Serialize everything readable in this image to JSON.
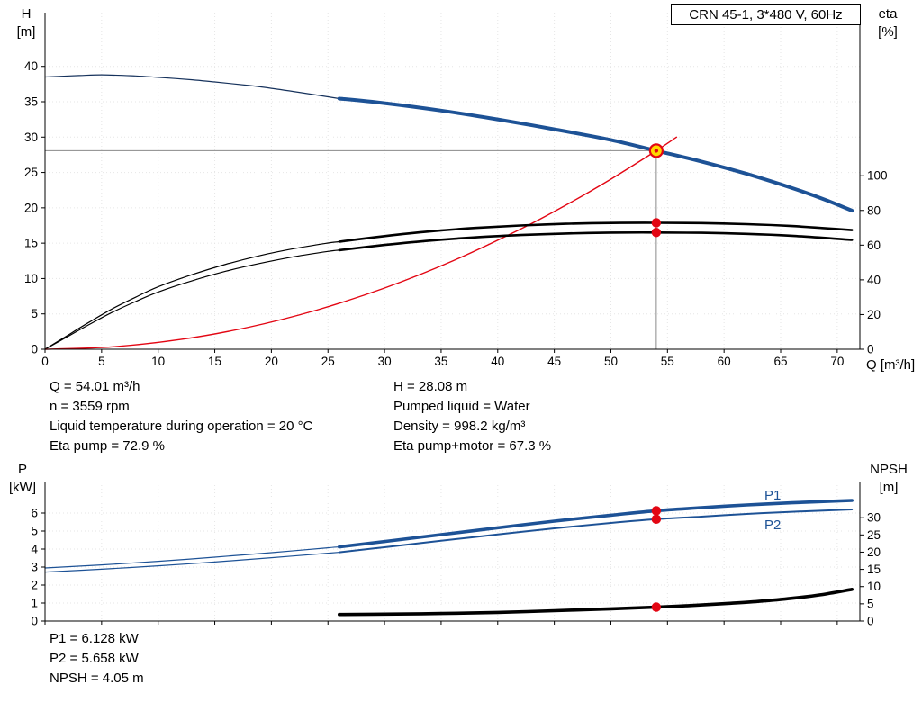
{
  "info": {
    "flow": "Q = 54.01 m³/h",
    "speed": "n = 3559 rpm",
    "temp": "Liquid temperature during operation = 20 °C",
    "eta_pump": "Eta pump = 72.9 %",
    "head": "H = 28.08 m",
    "liquid": "Pumped liquid = Water",
    "density": "Density = 998.2 kg/m³",
    "eta_total": "Eta pump+motor = 67.3 %",
    "p1": "P1 = 6.128 kW",
    "p2": "P2 = 5.658 kW",
    "npsh": "NPSH = 4.05 m"
  },
  "colors": {
    "curve_blue": "#1d5296",
    "curve_thin_navy": "#16325c",
    "curve_black": "#000000",
    "system_red": "#e30613",
    "duty_yellow": "#ffd800",
    "ref_gray": "#8a8a8a"
  },
  "chart_data": [
    {
      "type": "line",
      "name": "qh-eta-chart",
      "title": "CRN 45-1, 3*480 V, 60Hz",
      "x_label": "Q [m³/h]",
      "y_left_label": [
        "H",
        "[m]"
      ],
      "y_right_label": [
        "eta",
        "[%]"
      ],
      "x_range": [
        0,
        72
      ],
      "x_ticks": [
        0,
        5,
        10,
        15,
        20,
        25,
        30,
        35,
        40,
        45,
        50,
        55,
        60,
        65,
        70
      ],
      "y_left_range": [
        0,
        47.6
      ],
      "y_left_ticks": [
        0,
        5,
        10,
        15,
        20,
        25,
        30,
        35,
        40
      ],
      "y_right_range": [
        0,
        194
      ],
      "y_right_ticks": [
        0,
        20,
        40,
        60,
        80,
        100
      ],
      "grid": true,
      "duty_point": {
        "q": 54.01,
        "h": 28.08,
        "eta_pump": 72.9,
        "eta_pump_motor": 67.3
      },
      "ref_lines": [
        {
          "dir": "h",
          "value": 28.08,
          "from_x": 0,
          "to_x": 54.01
        },
        {
          "dir": "v",
          "x": 54.01,
          "from": 0,
          "to": 28.08
        }
      ],
      "series": [
        {
          "name": "head-curve-thin",
          "axis": "left",
          "color": "#16325c",
          "width": 1.2,
          "points": [
            [
              0,
              38.5
            ],
            [
              3,
              38.7
            ],
            [
              5,
              38.8
            ],
            [
              8,
              38.65
            ],
            [
              10,
              38.45
            ],
            [
              13,
              38.1
            ],
            [
              15,
              37.8
            ],
            [
              18,
              37.3
            ],
            [
              20,
              36.9
            ],
            [
              23,
              36.2
            ],
            [
              26,
              35.45
            ]
          ]
        },
        {
          "name": "eta-pump-curve-thin",
          "axis": "right",
          "color": "#000000",
          "width": 1.2,
          "points": [
            [
              0,
              0
            ],
            [
              2,
              8
            ],
            [
              4,
              16
            ],
            [
              6,
              23.5
            ],
            [
              8,
              30
            ],
            [
              10,
              36
            ],
            [
              13,
              43
            ],
            [
              16,
              49
            ],
            [
              19,
              54
            ],
            [
              22,
              58
            ],
            [
              25,
              61.2
            ],
            [
              26,
              62
            ]
          ]
        },
        {
          "name": "eta-pump-motor-curve-thin",
          "axis": "right",
          "color": "#000000",
          "width": 1.2,
          "points": [
            [
              0,
              0
            ],
            [
              2,
              7.3
            ],
            [
              4,
              14.6
            ],
            [
              6,
              21.5
            ],
            [
              8,
              27.5
            ],
            [
              10,
              33
            ],
            [
              13,
              39.5
            ],
            [
              16,
              45
            ],
            [
              19,
              49.5
            ],
            [
              22,
              53.3
            ],
            [
              25,
              56.4
            ],
            [
              26,
              57.1
            ]
          ]
        },
        {
          "name": "system-curve",
          "axis": "left",
          "color": "#e30613",
          "width": 1.4,
          "points": [
            [
              0,
              0
            ],
            [
              6,
              0.35
            ],
            [
              12,
              1.39
            ],
            [
              18,
              3.12
            ],
            [
              24,
              5.54
            ],
            [
              30,
              8.66
            ],
            [
              36,
              12.47
            ],
            [
              42,
              16.98
            ],
            [
              46,
              20.36
            ],
            [
              50,
              24.06
            ],
            [
              54.01,
              28.08
            ],
            [
              55.8,
              30.0
            ]
          ]
        },
        {
          "name": "eta-pump-curve",
          "axis": "right",
          "color": "#000000",
          "width": 2.6,
          "points": [
            [
              26,
              62
            ],
            [
              30,
              65.2
            ],
            [
              34,
              67.9
            ],
            [
              38,
              69.9
            ],
            [
              42,
              71.3
            ],
            [
              46,
              72.3
            ],
            [
              50,
              72.8
            ],
            [
              54.01,
              72.9
            ],
            [
              58,
              72.7
            ],
            [
              62,
              72.1
            ],
            [
              66,
              71.0
            ],
            [
              71.3,
              68.7
            ]
          ]
        },
        {
          "name": "eta-pump-motor-curve",
          "axis": "right",
          "color": "#000000",
          "width": 2.6,
          "points": [
            [
              26,
              57.1
            ],
            [
              30,
              60.1
            ],
            [
              34,
              62.6
            ],
            [
              38,
              64.5
            ],
            [
              42,
              65.8
            ],
            [
              46,
              66.7
            ],
            [
              50,
              67.2
            ],
            [
              54.01,
              67.3
            ],
            [
              58,
              67.1
            ],
            [
              62,
              66.5
            ],
            [
              66,
              65.4
            ],
            [
              71.3,
              63.0
            ]
          ]
        },
        {
          "name": "head-curve",
          "axis": "left",
          "color": "#1d5296",
          "width": 4,
          "points": [
            [
              26,
              35.45
            ],
            [
              30,
              34.8
            ],
            [
              35,
              33.75
            ],
            [
              40,
              32.5
            ],
            [
              45,
              31.1
            ],
            [
              50,
              29.6
            ],
            [
              54.01,
              28.08
            ],
            [
              58,
              26.55
            ],
            [
              62,
              24.8
            ],
            [
              66,
              22.8
            ],
            [
              69,
              21.1
            ],
            [
              71.3,
              19.6
            ]
          ]
        }
      ],
      "markers": [
        {
          "style": "duty",
          "name": "duty-point-marker",
          "x": 54.01,
          "y": 28.08,
          "axis": "left",
          "fill": "#ffd800",
          "stroke": "#e30613"
        },
        {
          "style": "dot",
          "name": "eta-pump-duty-dot",
          "x": 54.01,
          "y": 72.9,
          "axis": "right",
          "fill": "#e30613"
        },
        {
          "style": "dot",
          "name": "eta-pump-motor-duty-dot",
          "x": 54.01,
          "y": 67.3,
          "axis": "right",
          "fill": "#e30613"
        }
      ]
    },
    {
      "type": "line",
      "name": "power-npsh-chart",
      "x_label": "",
      "y_left_label": [
        "P",
        "[kW]"
      ],
      "y_right_label": [
        "NPSH",
        "[m]"
      ],
      "x_range": [
        0,
        72
      ],
      "x_ticks": [
        0,
        5,
        10,
        15,
        20,
        25,
        30,
        35,
        40,
        45,
        50,
        55,
        60,
        65,
        70
      ],
      "y_left_range": [
        0,
        7.75
      ],
      "y_left_ticks": [
        0,
        1,
        2,
        3,
        4,
        5,
        6
      ],
      "y_right_range": [
        0,
        40.5
      ],
      "y_right_ticks": [
        0,
        5,
        10,
        15,
        20,
        25,
        30
      ],
      "grid": true,
      "duty_point": {
        "q": 54.01,
        "p1": 6.128,
        "p2": 5.658,
        "npsh": 4.05
      },
      "ref_lines": [],
      "text_labels": [
        {
          "text": "P1",
          "x": 63.2,
          "y": 7.05
        },
        {
          "text": "P2",
          "x": 63.2,
          "y": 5.28
        }
      ],
      "series": [
        {
          "name": "p1-curve-thin",
          "axis": "left",
          "color": "#1d5296",
          "width": 1.2,
          "points": [
            [
              0,
              2.95
            ],
            [
              5,
              3.12
            ],
            [
              10,
              3.32
            ],
            [
              15,
              3.55
            ],
            [
              20,
              3.8
            ],
            [
              25,
              4.07
            ],
            [
              26,
              4.12
            ]
          ]
        },
        {
          "name": "p2-curve-thin",
          "axis": "left",
          "color": "#1d5296",
          "width": 1.2,
          "points": [
            [
              0,
              2.72
            ],
            [
              5,
              2.88
            ],
            [
              10,
              3.07
            ],
            [
              15,
              3.28
            ],
            [
              20,
              3.52
            ],
            [
              25,
              3.77
            ],
            [
              26,
              3.82
            ]
          ]
        },
        {
          "name": "p1-curve",
          "axis": "left",
          "color": "#1d5296",
          "width": 3.6,
          "points": [
            [
              26,
              4.12
            ],
            [
              30,
              4.42
            ],
            [
              35,
              4.8
            ],
            [
              40,
              5.18
            ],
            [
              45,
              5.55
            ],
            [
              50,
              5.88
            ],
            [
              54.01,
              6.128
            ],
            [
              58,
              6.3
            ],
            [
              62,
              6.45
            ],
            [
              66,
              6.57
            ],
            [
              71.3,
              6.7
            ]
          ]
        },
        {
          "name": "p2-curve",
          "axis": "left",
          "color": "#1d5296",
          "width": 2,
          "points": [
            [
              26,
              3.82
            ],
            [
              30,
              4.1
            ],
            [
              35,
              4.46
            ],
            [
              40,
              4.81
            ],
            [
              45,
              5.15
            ],
            [
              50,
              5.45
            ],
            [
              54.01,
              5.658
            ],
            [
              58,
              5.8
            ],
            [
              62,
              5.95
            ],
            [
              66,
              6.07
            ],
            [
              71.3,
              6.2
            ]
          ]
        },
        {
          "name": "npsh-curve",
          "axis": "right",
          "color": "#000000",
          "width": 3.6,
          "points": [
            [
              26,
              1.9
            ],
            [
              30,
              2.0
            ],
            [
              35,
              2.2
            ],
            [
              40,
              2.5
            ],
            [
              45,
              3.0
            ],
            [
              50,
              3.55
            ],
            [
              54.01,
              4.05
            ],
            [
              57,
              4.5
            ],
            [
              60,
              5.05
            ],
            [
              63,
              5.7
            ],
            [
              66,
              6.6
            ],
            [
              68.5,
              7.6
            ],
            [
              71.3,
              9.2
            ]
          ]
        }
      ],
      "markers": [
        {
          "style": "dot",
          "name": "p1-duty-dot",
          "x": 54.01,
          "y": 6.128,
          "axis": "left",
          "fill": "#e30613"
        },
        {
          "style": "dot",
          "name": "p2-duty-dot",
          "x": 54.01,
          "y": 5.658,
          "axis": "left",
          "fill": "#e30613"
        },
        {
          "style": "dot",
          "name": "npsh-duty-dot",
          "x": 54.01,
          "y": 4.05,
          "axis": "right",
          "fill": "#e30613"
        }
      ]
    }
  ]
}
